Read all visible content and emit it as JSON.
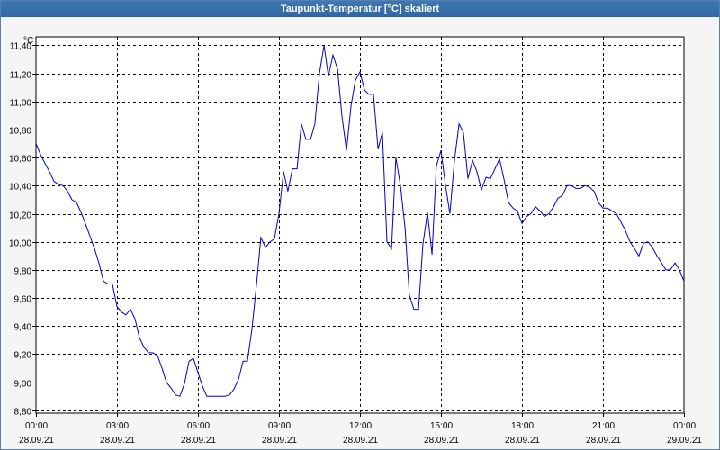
{
  "window": {
    "title": "Taupunkt-Temperatur [°C] skaliert"
  },
  "chart_data": {
    "type": "line",
    "title": "Taupunkt-Temperatur [°C] skaliert",
    "ylabel": "°C",
    "xlabel": "",
    "ylim": [
      8.78,
      11.46
    ],
    "xlim": [
      0,
      24
    ],
    "y_ticks": [
      "8,80",
      "9,00",
      "9,20",
      "9,40",
      "9,60",
      "9,80",
      "10,00",
      "10,20",
      "10,40",
      "10,60",
      "10,80",
      "11,00",
      "11,20",
      "11,40"
    ],
    "y_tick_values": [
      8.8,
      9.0,
      9.2,
      9.4,
      9.6,
      9.8,
      10.0,
      10.2,
      10.4,
      10.6,
      10.8,
      11.0,
      11.2,
      11.4
    ],
    "x_tick_times": [
      "00:00",
      "03:00",
      "06:00",
      "09:00",
      "12:00",
      "15:00",
      "18:00",
      "21:00",
      "00:00"
    ],
    "x_tick_dates": [
      "28.09.21",
      "28.09.21",
      "28.09.21",
      "28.09.21",
      "28.09.21",
      "28.09.21",
      "28.09.21",
      "28.09.21",
      "29.09.21"
    ],
    "x_tick_values": [
      0,
      3,
      6,
      9,
      12,
      15,
      18,
      21,
      24
    ],
    "grid": true,
    "line_color": "#0000cc",
    "series": [
      {
        "name": "Taupunkt-Temperatur",
        "x": [
          0,
          0.17,
          0.33,
          0.5,
          0.67,
          0.83,
          1.0,
          1.17,
          1.33,
          1.5,
          1.67,
          1.83,
          2.0,
          2.17,
          2.33,
          2.5,
          2.67,
          2.83,
          3.0,
          3.17,
          3.33,
          3.5,
          3.67,
          3.83,
          4.0,
          4.17,
          4.33,
          4.5,
          4.67,
          4.83,
          5.0,
          5.17,
          5.33,
          5.5,
          5.67,
          5.83,
          6.0,
          6.17,
          6.33,
          6.5,
          6.67,
          6.83,
          7.0,
          7.17,
          7.33,
          7.5,
          7.67,
          7.83,
          8.0,
          8.17,
          8.33,
          8.5,
          8.67,
          8.83,
          9.0,
          9.17,
          9.33,
          9.5,
          9.67,
          9.83,
          10.0,
          10.17,
          10.33,
          10.5,
          10.67,
          10.83,
          11.0,
          11.17,
          11.33,
          11.5,
          11.67,
          11.83,
          12.0,
          12.17,
          12.33,
          12.5,
          12.67,
          12.83,
          13.0,
          13.17,
          13.33,
          13.5,
          13.67,
          13.83,
          14.0,
          14.17,
          14.33,
          14.5,
          14.67,
          14.83,
          15.0,
          15.17,
          15.33,
          15.5,
          15.67,
          15.83,
          16.0,
          16.17,
          16.33,
          16.5,
          16.67,
          16.83,
          17.0,
          17.17,
          17.33,
          17.5,
          17.67,
          17.83,
          18.0,
          18.17,
          18.33,
          18.5,
          18.67,
          18.83,
          19.0,
          19.17,
          19.33,
          19.5,
          19.67,
          19.83,
          20.0,
          20.17,
          20.33,
          20.5,
          20.67,
          20.83,
          21.0,
          21.17,
          21.33,
          21.5,
          21.67,
          21.83,
          22.0,
          22.17,
          22.33,
          22.5,
          22.67,
          22.83,
          23.0,
          23.17,
          23.33,
          23.5,
          23.67,
          23.83,
          24.0
        ],
        "values": [
          10.7,
          10.62,
          10.56,
          10.5,
          10.43,
          10.41,
          10.4,
          10.36,
          10.3,
          10.28,
          10.21,
          10.13,
          10.04,
          9.95,
          9.85,
          9.72,
          9.7,
          9.7,
          9.54,
          9.5,
          9.48,
          9.52,
          9.45,
          9.32,
          9.25,
          9.21,
          9.21,
          9.19,
          9.1,
          9.0,
          8.96,
          8.91,
          8.9,
          8.99,
          9.15,
          9.17,
          9.07,
          8.97,
          8.9,
          8.9,
          8.9,
          8.9,
          8.9,
          8.91,
          8.95,
          9.02,
          9.15,
          9.15,
          9.38,
          9.7,
          10.03,
          9.96,
          10.0,
          10.02,
          10.2,
          10.5,
          10.36,
          10.52,
          10.52,
          10.84,
          10.73,
          10.73,
          10.84,
          11.2,
          11.4,
          11.18,
          11.33,
          11.23,
          10.9,
          10.65,
          10.97,
          11.15,
          11.21,
          11.08,
          11.05,
          11.05,
          10.66,
          10.78,
          10.0,
          9.95,
          10.6,
          10.4,
          10.1,
          9.62,
          9.52,
          9.52,
          9.98,
          10.21,
          9.91,
          10.54,
          10.65,
          10.4,
          10.2,
          10.58,
          10.84,
          10.78,
          10.45,
          10.58,
          10.5,
          10.37,
          10.46,
          10.45,
          10.52,
          10.59,
          10.45,
          10.28,
          10.24,
          10.22,
          10.13,
          10.18,
          10.2,
          10.25,
          10.22,
          10.18,
          10.2,
          10.25,
          10.31,
          10.33,
          10.4,
          10.4,
          10.38,
          10.38,
          10.4,
          10.39,
          10.36,
          10.28,
          10.24,
          10.24,
          10.22,
          10.2,
          10.14,
          10.08,
          10.0,
          9.95,
          9.9,
          9.99,
          10.0,
          9.96,
          9.9,
          9.85,
          9.8,
          9.8,
          9.85,
          9.8,
          9.72
        ]
      }
    ]
  }
}
